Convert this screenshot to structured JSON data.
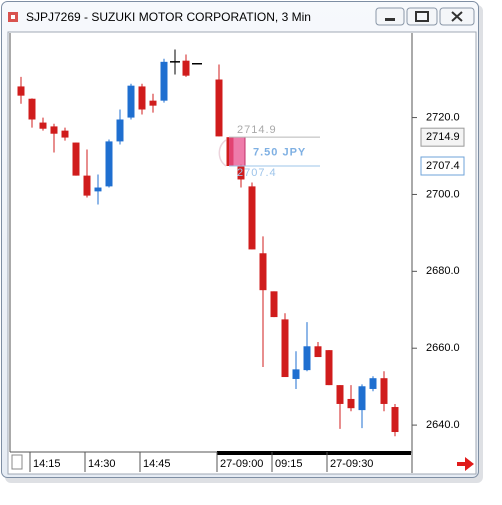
{
  "chart_data": {
    "type": "candlestick",
    "title": "SJPJ7269 - SUZUKI MOTOR CORPORATION, 3 Min",
    "categories": [
      null,
      "14:15",
      null,
      null,
      null,
      null,
      "14:30",
      null,
      null,
      null,
      null,
      "14:45",
      null,
      null,
      null,
      null,
      null,
      null,
      "27-09:00",
      null,
      null,
      null,
      null,
      "09:15",
      null,
      null,
      null,
      null,
      "27-09:30",
      null,
      null,
      null,
      null,
      null,
      null
    ],
    "open": [
      2728.1,
      2724.9,
      2718.7,
      2717.7,
      2716.6,
      2713.5,
      2704.9,
      2700.8,
      2702.1,
      2713.8,
      2720.0,
      2728.1,
      2724.4,
      2724.4,
      2734.5,
      2734.8,
      2734.0,
      null,
      2729.9,
      2714.9,
      2707.3,
      2702.1,
      2684.7,
      2674.8,
      2667.5,
      2652.0,
      2654.3,
      2660.5,
      2659.5,
      2650.4,
      2646.8,
      2643.9,
      2649.4,
      2652.2,
      2644.7
    ],
    "high": [
      2730.6,
      2725.0,
      2720.0,
      2718.4,
      2717.4,
      2713.5,
      2711.7,
      2705.2,
      2714.3,
      2722.1,
      2728.8,
      2728.8,
      2726.2,
      2735.3,
      2737.7,
      2736.4,
      2734.0,
      null,
      2733.8,
      2714.9,
      2707.8,
      2703.1,
      2689.1,
      2674.8,
      2669.1,
      2659.2,
      2666.8,
      2661.6,
      2659.5,
      2650.4,
      2650.4,
      2650.6,
      2652.7,
      2654.0,
      2645.5
    ],
    "low": [
      2723.6,
      2717.4,
      2716.6,
      2710.9,
      2714.0,
      2704.9,
      2699.2,
      2697.4,
      2701.8,
      2713.0,
      2719.5,
      2720.8,
      2721.3,
      2723.9,
      2731.2,
      2730.6,
      2734.0,
      null,
      2715.1,
      2707.4,
      2701.8,
      2685.7,
      2655.1,
      2668.1,
      2652.5,
      2649.4,
      2654.0,
      2657.7,
      2650.4,
      2639.0,
      2643.6,
      2639.2,
      2648.8,
      2643.6,
      2637.1
    ],
    "close": [
      2725.7,
      2719.5,
      2717.1,
      2715.8,
      2714.8,
      2704.9,
      2699.7,
      2701.8,
      2713.8,
      2719.5,
      2728.3,
      2722.1,
      2723.1,
      2734.5,
      2734.5,
      2730.9,
      2734.0,
      null,
      2715.1,
      2707.4,
      2703.9,
      2685.7,
      2675.1,
      2668.1,
      2652.5,
      2654.5,
      2660.5,
      2657.7,
      2650.4,
      2645.5,
      2644.4,
      2650.1,
      2652.2,
      2645.5,
      2638.2
    ],
    "up_color": "#1f6fd0",
    "down_color": "#d01c1c",
    "doji_color": "#000000",
    "ylim": [
      2633,
      2742
    ],
    "yticks": [
      {
        "value": 2640,
        "label": "2640.0"
      },
      {
        "value": 2660,
        "label": "2660.0"
      },
      {
        "value": 2680,
        "label": "2680.0"
      },
      {
        "value": 2700,
        "label": "2700.0"
      },
      {
        "value": 2720,
        "label": "2720.0"
      }
    ],
    "measure": {
      "from": 2714.9,
      "to": 2707.4,
      "change": {
        "value": 7.5,
        "label": "7.50 JPY"
      },
      "color": "#e8508e"
    }
  }
}
